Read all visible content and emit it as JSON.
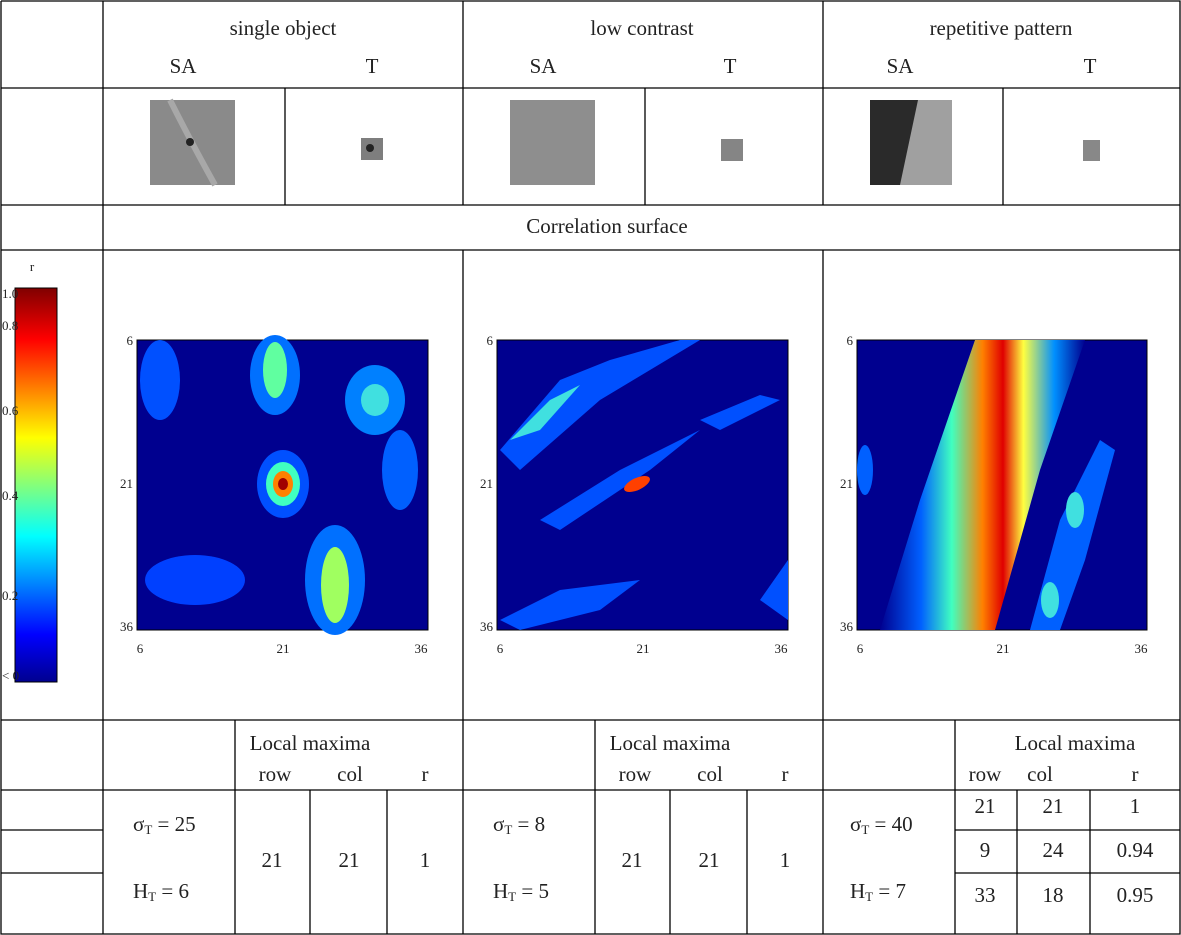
{
  "header": {
    "columns": [
      {
        "title": "single object",
        "sa": "SA",
        "t": "T"
      },
      {
        "title": "low contrast",
        "sa": "SA",
        "t": "T"
      },
      {
        "title": "repetitive pattern",
        "sa": "SA",
        "t": "T"
      }
    ]
  },
  "section_title": "Correlation surface",
  "colorbar": {
    "title": "r",
    "labels": [
      "1.0",
      "0.8",
      "0.6",
      "0.4",
      "0.2",
      "< 0"
    ]
  },
  "plots": [
    {
      "yticks": [
        "6",
        "21",
        "36"
      ],
      "xticks": [
        "6",
        "21",
        "36"
      ]
    },
    {
      "yticks": [
        "6",
        "21",
        "36"
      ],
      "xticks": [
        "6",
        "21",
        "36"
      ]
    },
    {
      "yticks": [
        "6",
        "21",
        "36"
      ],
      "xticks": [
        "6",
        "21",
        "36"
      ]
    }
  ],
  "maxima_header": {
    "title": "Local maxima",
    "row": "row",
    "col": "col",
    "r": "r"
  },
  "stats": [
    {
      "sigma": [
        "σ",
        "T",
        " = 25"
      ],
      "h": [
        "H",
        "T",
        " = 6"
      ],
      "maxima": [
        [
          21,
          21,
          1
        ]
      ]
    },
    {
      "sigma": [
        "σ",
        "T",
        " = 8"
      ],
      "h": [
        "H",
        "T",
        " = 5"
      ],
      "maxima": [
        [
          21,
          21,
          1
        ]
      ]
    },
    {
      "sigma": [
        "σ",
        "T",
        " = 40"
      ],
      "h": [
        "H",
        "T",
        " = 7"
      ],
      "maxima": [
        [
          21,
          21,
          1
        ],
        [
          9,
          24,
          0.94
        ],
        [
          33,
          18,
          0.95
        ]
      ]
    }
  ]
}
